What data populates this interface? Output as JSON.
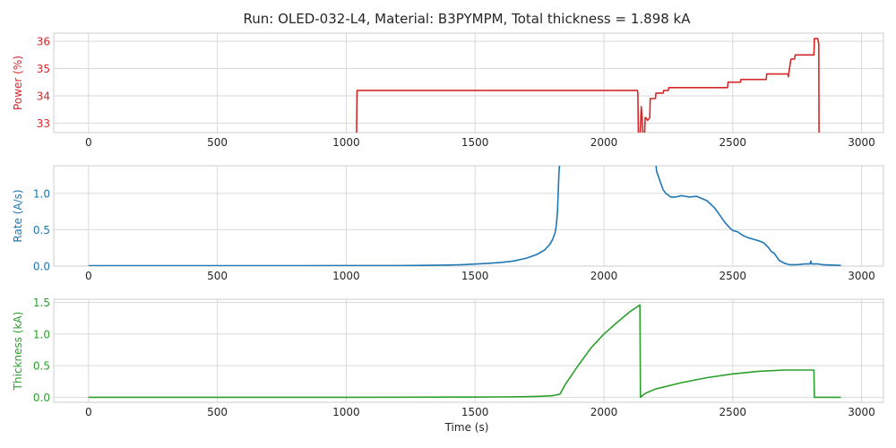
{
  "chart_data": {
    "type": "line",
    "title": "Run: OLED-032-L4, Material: B3PYMPM, Total thickness = 1.898 kA",
    "xlabel": "Time (s)",
    "xlim": [
      -135,
      3085
    ],
    "xticks": [
      0,
      500,
      1000,
      1500,
      2000,
      2500,
      3000
    ],
    "xtick_labels": [
      "0",
      "500",
      "1000",
      "1500",
      "2000",
      "2500",
      "3000"
    ],
    "grid": true,
    "panels": [
      {
        "name": "power",
        "ylabel": "Power (%)",
        "color": "#d62728",
        "ylim": [
          32.65,
          36.3
        ],
        "yticks": [
          33,
          34,
          35,
          36
        ],
        "ytick_labels": [
          "33",
          "34",
          "35",
          "36"
        ],
        "x": [
          1040,
          1042,
          1045,
          2130,
          2132,
          2134,
          2138,
          2141,
          2145,
          2148,
          2152,
          2158,
          2160,
          2163,
          2170,
          2178,
          2180,
          2200,
          2202,
          2230,
          2232,
          2250,
          2252,
          2300,
          2400,
          2480,
          2482,
          2530,
          2532,
          2600,
          2630,
          2632,
          2700,
          2715,
          2716,
          2717,
          2725,
          2727,
          2740,
          2743,
          2815,
          2817,
          2830,
          2834,
          2835
        ],
        "y": [
          32.5,
          34.2,
          34.2,
          34.2,
          34.1,
          32.5,
          32.5,
          32.6,
          33.6,
          33.3,
          32.5,
          32.5,
          33.2,
          33.2,
          33.1,
          33.2,
          33.9,
          33.9,
          34.1,
          34.1,
          34.2,
          34.2,
          34.3,
          34.3,
          34.3,
          34.3,
          34.5,
          34.5,
          34.6,
          34.6,
          34.6,
          34.8,
          34.8,
          34.8,
          34.7,
          34.8,
          35.3,
          35.35,
          35.35,
          35.5,
          35.5,
          36.1,
          36.1,
          35.9,
          32.5
        ]
      },
      {
        "name": "rate",
        "ylabel": "Rate (A/s)",
        "color": "#1f77b4",
        "ylim": [
          0.0,
          1.38
        ],
        "yticks": [
          0.0,
          0.5,
          1.0
        ],
        "ytick_labels": [
          "0.0",
          "0.5",
          "1.0"
        ],
        "x": [
          0,
          200,
          400,
          600,
          800,
          1000,
          1200,
          1300,
          1400,
          1450,
          1500,
          1550,
          1600,
          1650,
          1700,
          1740,
          1770,
          1790,
          1800,
          1810,
          1815,
          1820,
          1822,
          1824,
          1826,
          1828,
          1830,
          2200,
          2205,
          2210,
          2220,
          2230,
          2240,
          2260,
          2280,
          2300,
          2330,
          2360,
          2400,
          2430,
          2450,
          2470,
          2490,
          2500,
          2520,
          2540,
          2560,
          2580,
          2600,
          2620,
          2640,
          2650,
          2660,
          2670,
          2680,
          2700,
          2720,
          2750,
          2780,
          2800,
          2803,
          2806,
          2830,
          2850,
          2880,
          2920
        ],
        "y": [
          0.005,
          0.005,
          0.005,
          0.006,
          0.006,
          0.007,
          0.008,
          0.01,
          0.015,
          0.02,
          0.028,
          0.038,
          0.05,
          0.07,
          0.11,
          0.16,
          0.22,
          0.3,
          0.36,
          0.45,
          0.55,
          0.75,
          0.95,
          1.15,
          1.3,
          1.4,
          1.45,
          1.45,
          1.3,
          1.25,
          1.15,
          1.05,
          1.0,
          0.95,
          0.95,
          0.97,
          0.95,
          0.96,
          0.9,
          0.8,
          0.7,
          0.6,
          0.52,
          0.49,
          0.47,
          0.42,
          0.39,
          0.37,
          0.35,
          0.32,
          0.25,
          0.2,
          0.18,
          0.13,
          0.08,
          0.04,
          0.02,
          0.02,
          0.03,
          0.03,
          0.07,
          0.03,
          0.03,
          0.02,
          0.015,
          0.01
        ]
      },
      {
        "name": "thickness",
        "ylabel": "Thickness (kA)",
        "color": "#2ca02c",
        "ylim": [
          -0.08,
          1.55
        ],
        "yticks": [
          0.0,
          0.5,
          1.0,
          1.5
        ],
        "ytick_labels": [
          "0.0",
          "0.5",
          "1.0",
          "1.5"
        ],
        "x": [
          0,
          1000,
          1500,
          1600,
          1700,
          1750,
          1800,
          1830,
          1850,
          1900,
          1950,
          2000,
          2050,
          2100,
          2140,
          2142,
          2160,
          2200,
          2300,
          2400,
          2500,
          2600,
          2700,
          2750,
          2810,
          2815,
          2817,
          2920
        ],
        "y": [
          0.0,
          0.0,
          0.002,
          0.005,
          0.01,
          0.015,
          0.025,
          0.05,
          0.2,
          0.5,
          0.78,
          1.0,
          1.18,
          1.35,
          1.46,
          0.0,
          0.06,
          0.13,
          0.23,
          0.31,
          0.37,
          0.41,
          0.43,
          0.43,
          0.43,
          0.43,
          0.0,
          0.0
        ]
      }
    ]
  }
}
